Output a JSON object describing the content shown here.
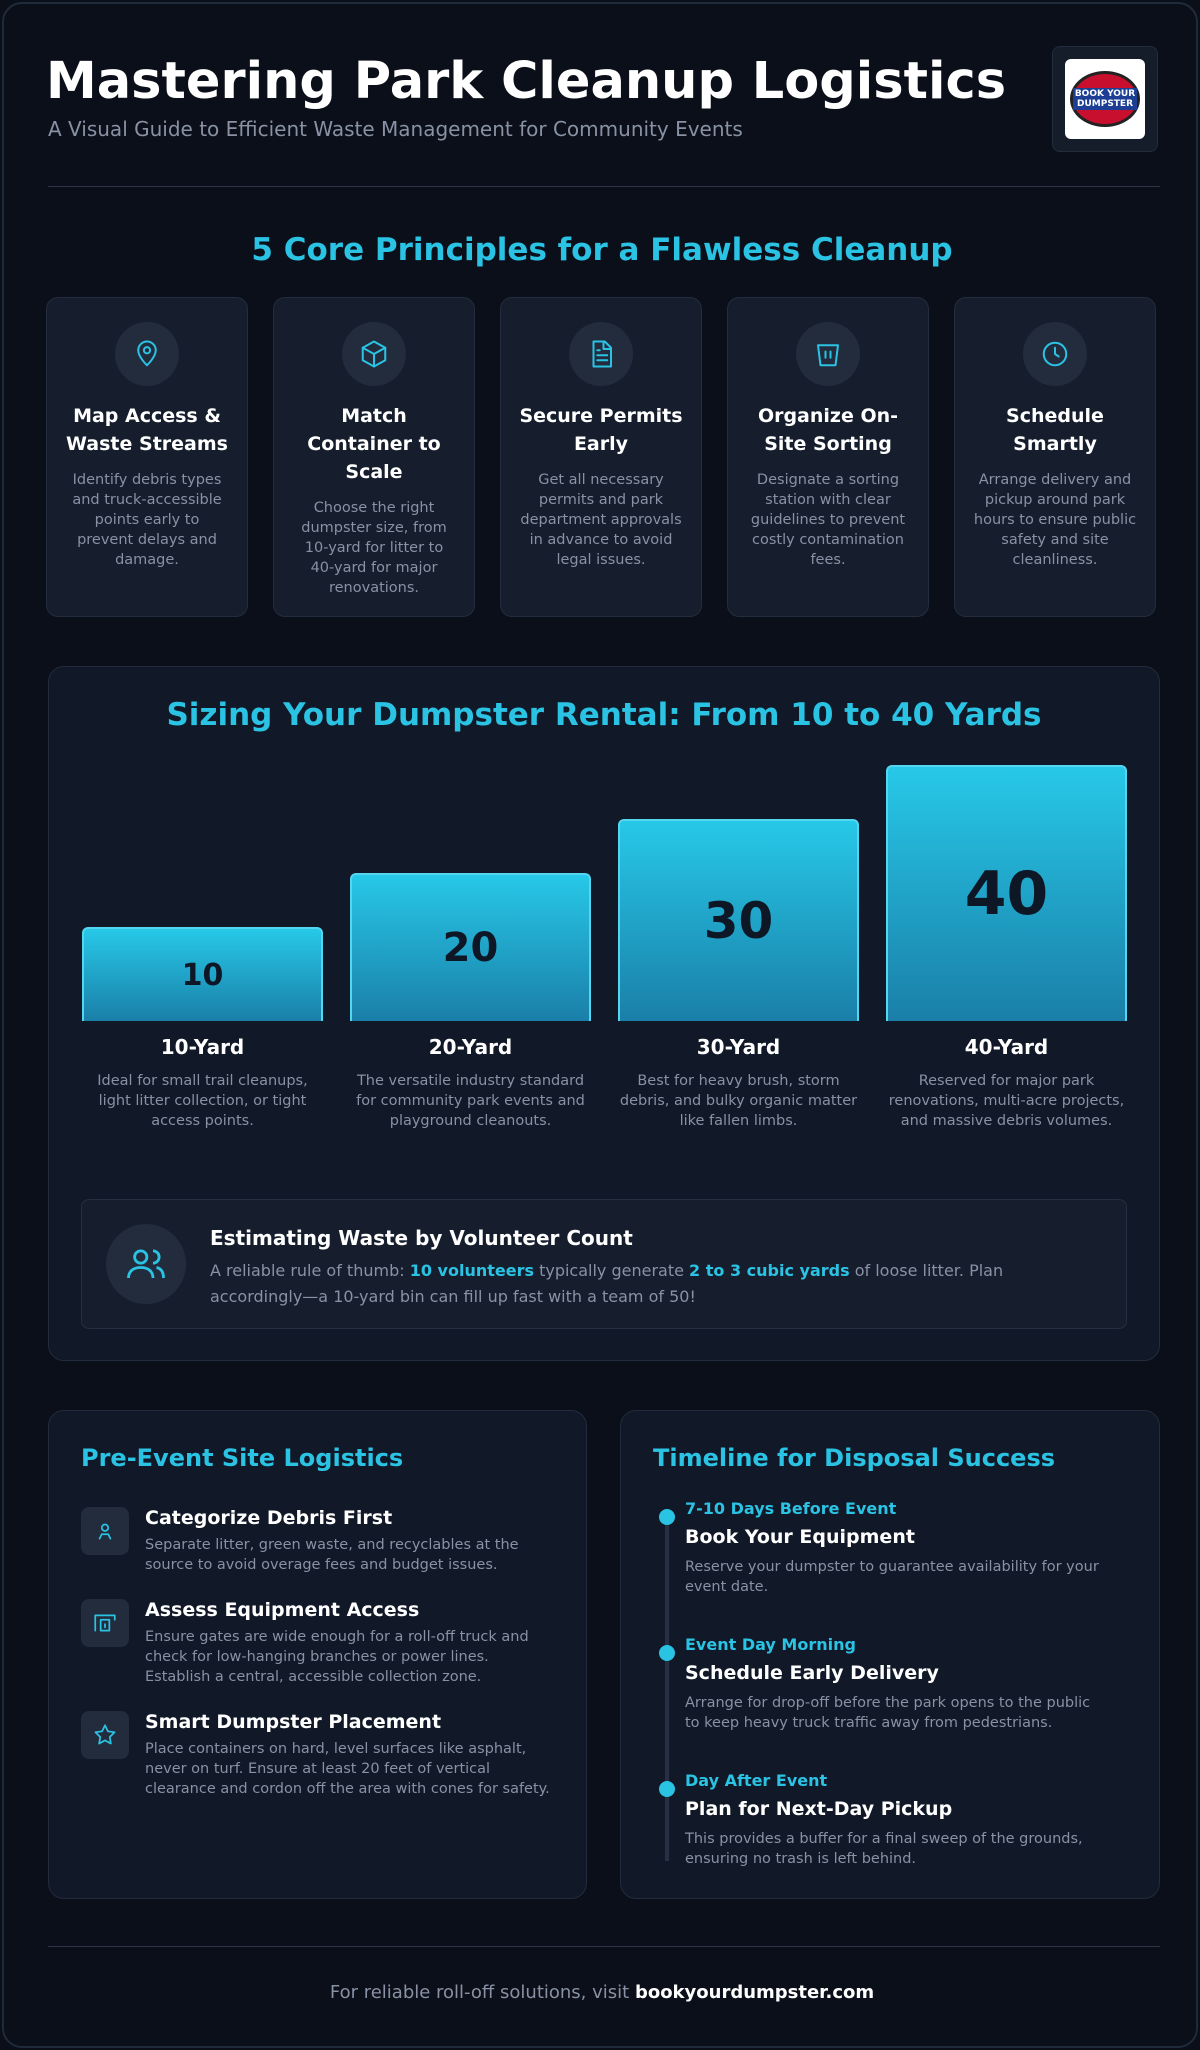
{
  "header": {
    "title": "Mastering Park Cleanup Logistics",
    "subtitle": "A Visual Guide to Efficient Waste Management for Community Events",
    "logo_text": "BOOK YOUR DUMPSTER"
  },
  "principles": {
    "title": "5 Core Principles for a Flawless Cleanup",
    "cards": [
      {
        "title": "Map Access & Waste Streams",
        "text": "Identify debris types and truck-accessible points early to prevent delays and damage."
      },
      {
        "title": "Match Container to Scale",
        "text": "Choose the right dumpster size, from 10-yard for litter to 40-yard for major renovations."
      },
      {
        "title": "Secure Permits Early",
        "text": "Get all necessary permits and park department approvals in advance to avoid legal issues."
      },
      {
        "title": "Organize On-Site Sorting",
        "text": "Designate a sorting station with clear guidelines to prevent costly contamination fees."
      },
      {
        "title": "Schedule Smartly",
        "text": "Arrange delivery and pickup around park hours to ensure public safety and site cleanliness."
      }
    ]
  },
  "sizing": {
    "title": "Sizing Your Dumpster Rental: From 10 to 40 Yards",
    "bars": [
      {
        "value": 10,
        "label": "10-Yard",
        "text": "Ideal for small trail cleanups, light litter collection, or tight access points."
      },
      {
        "value": 20,
        "label": "20-Yard",
        "text": "The versatile industry standard for community park events and playground cleanouts."
      },
      {
        "value": 30,
        "label": "30-Yard",
        "text": "Best for heavy brush, storm debris, and bulky organic matter like fallen limbs."
      },
      {
        "value": 40,
        "label": "40-Yard",
        "text": "Reserved for major park renovations, multi-acre projects, and massive debris volumes."
      }
    ],
    "estimate": {
      "title": "Estimating Waste by Volunteer Count",
      "text_1": "A reliable rule of thumb: ",
      "highlight_1": "10 volunteers",
      "text_2": " typically generate ",
      "highlight_2": "2 to 3 cubic yards",
      "text_3": " of loose litter. Plan accordingly—a 10-yard bin can fill up fast with a team of 50!"
    }
  },
  "logistics": {
    "title": "Pre-Event Site Logistics",
    "items": [
      {
        "title": "Categorize Debris First",
        "text": "Separate litter, green waste, and recyclables at the source to avoid overage fees and budget issues."
      },
      {
        "title": "Assess Equipment Access",
        "text": "Ensure gates are wide enough for a roll-off truck and check for low-hanging branches or power lines. Establish a central, accessible collection zone."
      },
      {
        "title": "Smart Dumpster Placement",
        "text": "Place containers on hard, level surfaces like asphalt, never on turf. Ensure at least 20 feet of vertical clearance and cordon off the area with cones for safety."
      }
    ]
  },
  "timeline": {
    "title": "Timeline for Disposal Success",
    "steps": [
      {
        "when": "7-10 Days Before Event",
        "title": "Book Your Equipment",
        "text": "Reserve your dumpster to guarantee availability for your event date."
      },
      {
        "when": "Event Day Morning",
        "title": "Schedule Early Delivery",
        "text": "Arrange for drop-off before the park opens to the public to keep heavy truck traffic away from pedestrians."
      },
      {
        "when": "Day After Event",
        "title": "Plan for Next-Day Pickup",
        "text": "This provides a buffer for a final sweep of the grounds, ensuring no trash is left behind."
      }
    ]
  },
  "footer": {
    "text": "For reliable roll-off solutions, visit ",
    "link": "bookyourdumpster.com"
  }
}
